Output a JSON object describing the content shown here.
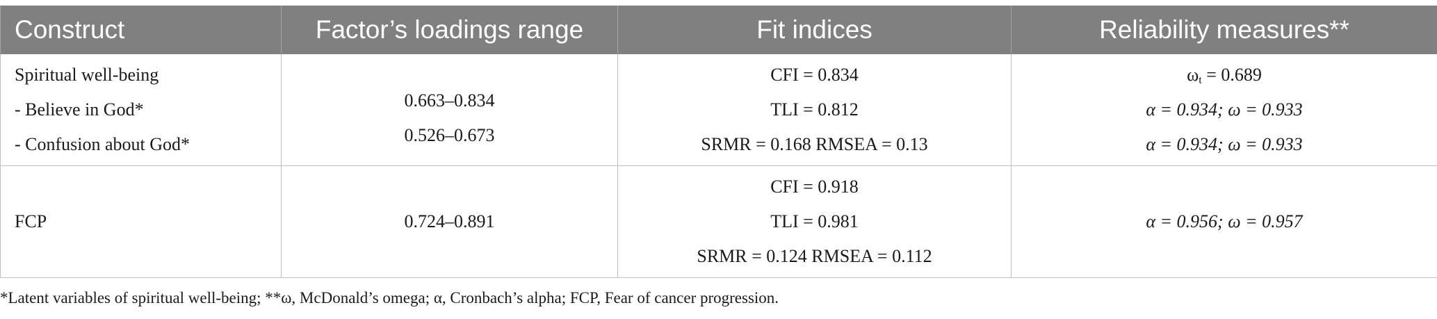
{
  "table": {
    "headers": [
      "Construct",
      "Factor’s loadings range",
      "Fit indices",
      "Reliability measures**"
    ],
    "rows": [
      {
        "construct": [
          "Spiritual well-being",
          "- Believe in God*",
          "- Confusion about God*"
        ],
        "loadings": [
          "0.663–0.834",
          "0.526–0.673"
        ],
        "fit": [
          "CFI = 0.834",
          "TLI = 0.812",
          "SRMR = 0.168 RMSEA = 0.13"
        ],
        "reliability": {
          "omega_t_symbol": "ω",
          "omega_t_sub": "t",
          "omega_t_value": " = 0.689",
          "lines": [
            "α = 0.934; ω = 0.933",
            "α = 0.934; ω = 0.933"
          ]
        }
      },
      {
        "construct": [
          "FCP"
        ],
        "loadings": [
          "0.724–0.891"
        ],
        "fit": [
          "CFI = 0.918",
          "TLI = 0.981",
          "SRMR = 0.124 RMSEA = 0.112"
        ],
        "reliability": {
          "lines": [
            "α = 0.956; ω = 0.957"
          ]
        }
      }
    ]
  },
  "footnote": "*Latent variables of spiritual well-being; **ω, McDonald’s omega; α, Cronbach’s alpha; FCP, Fear of cancer progression."
}
